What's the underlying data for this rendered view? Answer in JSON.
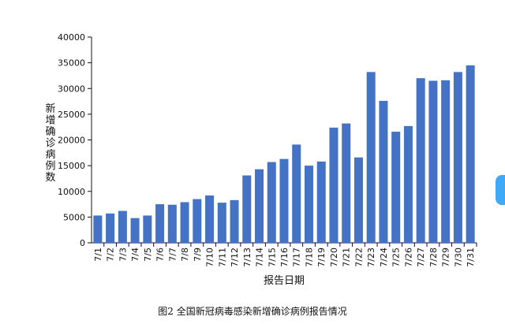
{
  "chart_data": {
    "type": "bar",
    "categories": [
      "7/1",
      "7/2",
      "7/3",
      "7/4",
      "7/5",
      "7/6",
      "7/7",
      "7/8",
      "7/9",
      "7/10",
      "7/11",
      "7/12",
      "7/13",
      "7/14",
      "7/15",
      "7/16",
      "7/17",
      "7/18",
      "7/19",
      "7/20",
      "7/21",
      "7/22",
      "7/23",
      "7/24",
      "7/25",
      "7/26",
      "7/27",
      "7/28",
      "7/29",
      "7/30",
      "7/31"
    ],
    "values": [
      5300,
      5700,
      6200,
      4800,
      5300,
      7500,
      7400,
      7900,
      8500,
      9200,
      7800,
      8300,
      13100,
      14300,
      15700,
      16300,
      19100,
      15000,
      15800,
      22400,
      23200,
      16600,
      33200,
      27600,
      21600,
      22700,
      32000,
      31500,
      31600,
      33200,
      34500
    ],
    "ylim": [
      0,
      40000
    ],
    "yticks": [
      0,
      5000,
      10000,
      15000,
      20000,
      25000,
      30000,
      35000,
      40000
    ],
    "xlabel": "报告日期",
    "ylabel": "新增确诊病例数",
    "bar_color": "#4472c4",
    "grid": false
  },
  "caption": "图2 全国新冠病毒感染新增确诊病例报告情况",
  "colors": {
    "side_tab": "#3fa9f5"
  }
}
